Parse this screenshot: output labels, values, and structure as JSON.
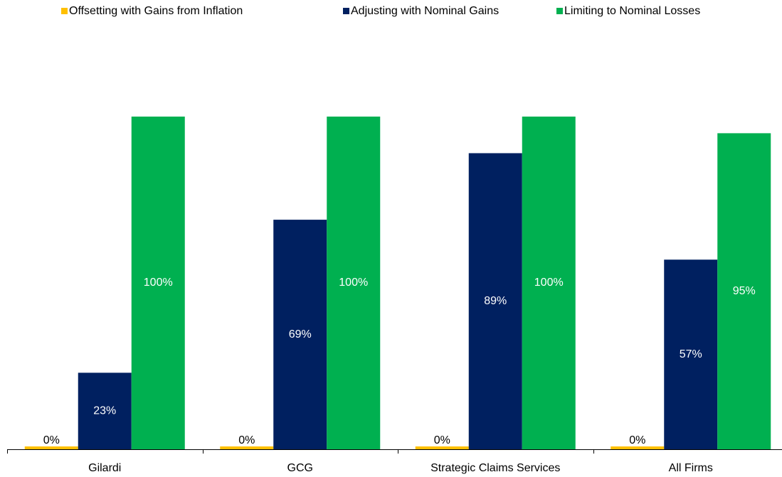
{
  "chart_data": {
    "type": "bar",
    "categories": [
      "Gilardi",
      "GCG",
      "Strategic Claims Services",
      "All Firms"
    ],
    "series": [
      {
        "name": "Offsetting with Gains from Inflation",
        "color": "#ffc000",
        "values": [
          0,
          0,
          0,
          0
        ],
        "value_labels": [
          "0%",
          "0%",
          "0%",
          "0%"
        ]
      },
      {
        "name": "Adjusting with Nominal Gains",
        "color": "#002060",
        "values": [
          23,
          69,
          89,
          57
        ],
        "value_labels": [
          "23%",
          "69%",
          "89%",
          "57%"
        ]
      },
      {
        "name": "Limiting to Nominal Losses",
        "color": "#00b050",
        "values": [
          100,
          100,
          100,
          95
        ],
        "value_labels": [
          "100%",
          "100%",
          "100%",
          "95%"
        ]
      }
    ],
    "ylim": [
      0,
      100
    ]
  }
}
